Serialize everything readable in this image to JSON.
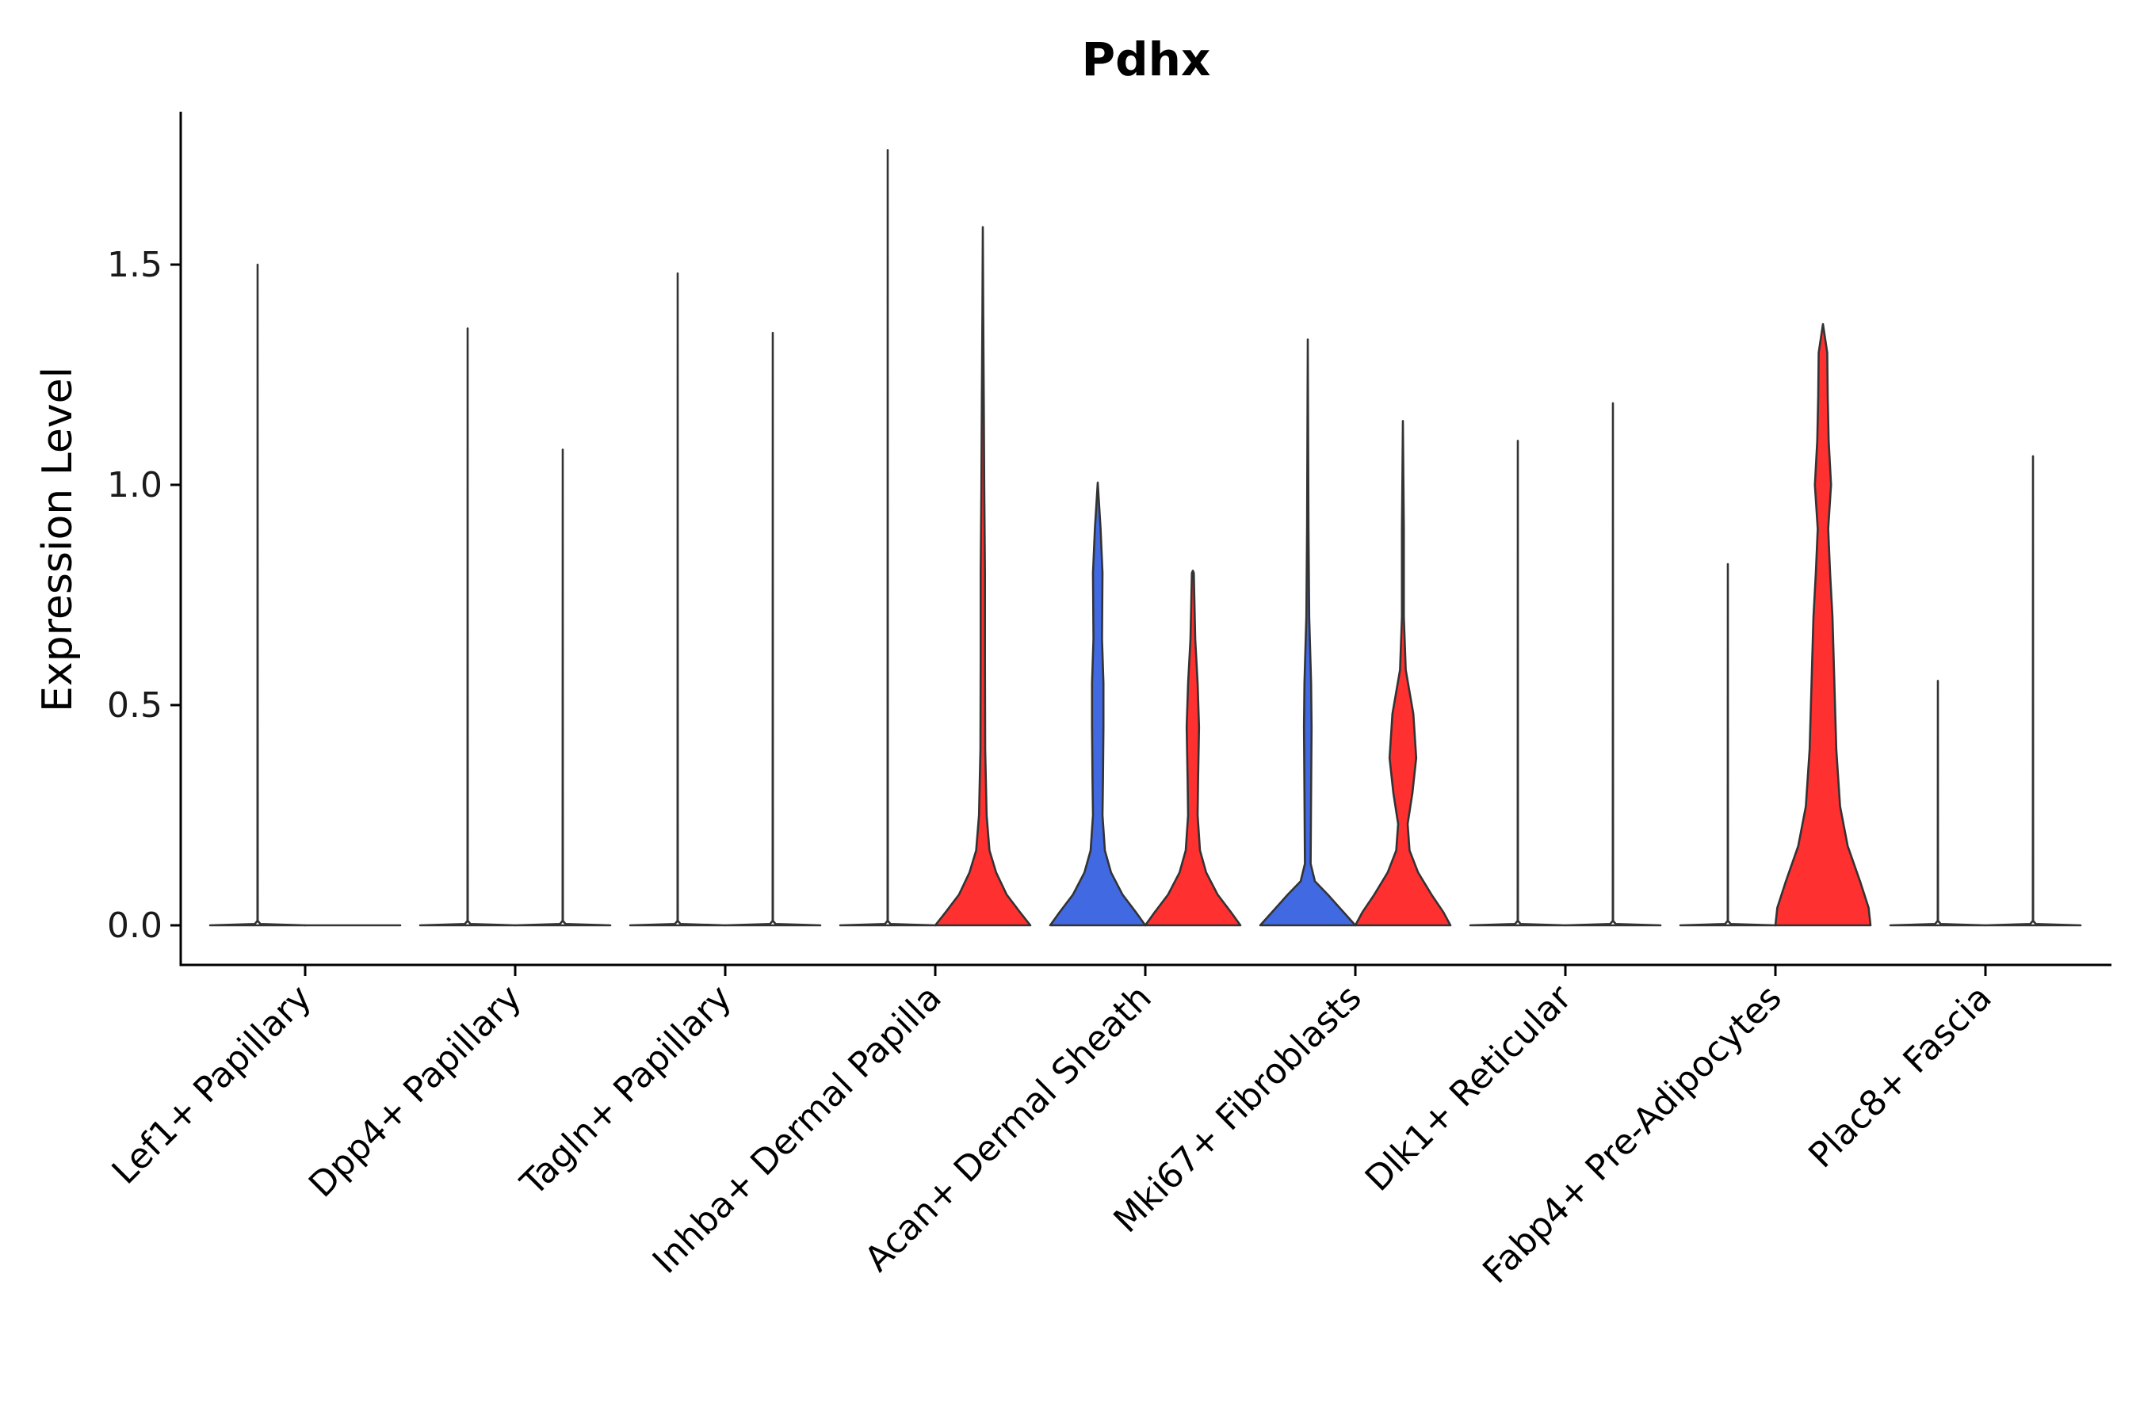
{
  "chart_data": {
    "type": "violin",
    "title": "Pdhx",
    "xlabel": "",
    "ylabel": "Expression Level",
    "ylim": [
      -0.09,
      1.85
    ],
    "yticks": [
      0.0,
      0.5,
      1.0,
      1.5
    ],
    "ytick_labels": [
      "0.0",
      "0.5",
      "1.0",
      "1.5"
    ],
    "categories": [
      "Lef1+ Papillary",
      "Dpp4+ Papillary",
      "Tagln+ Papillary",
      "Inhba+ Dermal Papilla",
      "Acan+ Dermal Sheath",
      "Mki67+ Fibroblasts",
      "Dlk1+ Reticular",
      "Fabp4+ Pre-Adipocytes",
      "Plac8+ Fascia"
    ],
    "colors": {
      "low": "#ffffff",
      "blue": "#4169e1",
      "red": "#ff3030",
      "outline": "#333333"
    },
    "violins": [
      {
        "category_index": 0,
        "side": "left",
        "max": 1.5,
        "fill": "#ffffff",
        "profile": [
          [
            0,
            1
          ],
          [
            0.003,
            0.06
          ],
          [
            0.01,
            0.004
          ],
          [
            1.5,
            0.0
          ]
        ]
      },
      {
        "category_index": 0,
        "side": "right",
        "max": 0.0,
        "fill": "#ffffff",
        "profile": [
          [
            0,
            1
          ],
          [
            0.0,
            0.0
          ]
        ]
      },
      {
        "category_index": 1,
        "side": "left",
        "max": 1.355,
        "fill": "#ffffff",
        "profile": [
          [
            0,
            1
          ],
          [
            0.003,
            0.06
          ],
          [
            0.01,
            0.004
          ],
          [
            1.355,
            0.0
          ]
        ]
      },
      {
        "category_index": 1,
        "side": "right",
        "max": 1.08,
        "fill": "#ffffff",
        "profile": [
          [
            0,
            1
          ],
          [
            0.003,
            0.06
          ],
          [
            0.01,
            0.004
          ],
          [
            1.08,
            0.0
          ]
        ]
      },
      {
        "category_index": 2,
        "side": "left",
        "max": 1.48,
        "fill": "#ffffff",
        "profile": [
          [
            0,
            1
          ],
          [
            0.003,
            0.06
          ],
          [
            0.01,
            0.004
          ],
          [
            1.48,
            0.0
          ]
        ]
      },
      {
        "category_index": 2,
        "side": "right",
        "max": 1.345,
        "fill": "#ffffff",
        "profile": [
          [
            0,
            1
          ],
          [
            0.003,
            0.06
          ],
          [
            0.01,
            0.004
          ],
          [
            1.345,
            0.0
          ]
        ]
      },
      {
        "category_index": 3,
        "side": "left",
        "max": 1.76,
        "fill": "#ffffff",
        "profile": [
          [
            0,
            1
          ],
          [
            0.003,
            0.06
          ],
          [
            0.01,
            0.004
          ],
          [
            1.76,
            0.0
          ]
        ]
      },
      {
        "category_index": 3,
        "side": "right",
        "max": 1.585,
        "fill": "#ff3030",
        "profile": [
          [
            0,
            1
          ],
          [
            0.03,
            0.78
          ],
          [
            0.07,
            0.5
          ],
          [
            0.12,
            0.28
          ],
          [
            0.17,
            0.14
          ],
          [
            0.25,
            0.08
          ],
          [
            0.4,
            0.05
          ],
          [
            0.6,
            0.045
          ],
          [
            0.8,
            0.045
          ],
          [
            1.0,
            0.03
          ],
          [
            1.2,
            0.02
          ],
          [
            1.4,
            0.008
          ],
          [
            1.585,
            0.0
          ]
        ]
      },
      {
        "category_index": 4,
        "side": "left",
        "max": 1.005,
        "fill": "#4169e1",
        "profile": [
          [
            0,
            1
          ],
          [
            0.03,
            0.8
          ],
          [
            0.07,
            0.52
          ],
          [
            0.12,
            0.28
          ],
          [
            0.17,
            0.15
          ],
          [
            0.25,
            0.1
          ],
          [
            0.33,
            0.11
          ],
          [
            0.45,
            0.12
          ],
          [
            0.55,
            0.12
          ],
          [
            0.65,
            0.09
          ],
          [
            0.8,
            0.1
          ],
          [
            0.9,
            0.06
          ],
          [
            1.005,
            0.0
          ]
        ]
      },
      {
        "category_index": 4,
        "side": "right",
        "max": 0.805,
        "fill": "#ff3030",
        "profile": [
          [
            0,
            1
          ],
          [
            0.03,
            0.8
          ],
          [
            0.07,
            0.52
          ],
          [
            0.12,
            0.28
          ],
          [
            0.17,
            0.15
          ],
          [
            0.25,
            0.1
          ],
          [
            0.33,
            0.11
          ],
          [
            0.45,
            0.13
          ],
          [
            0.55,
            0.1
          ],
          [
            0.65,
            0.05
          ],
          [
            0.8,
            0.02
          ],
          [
            0.805,
            0.0
          ]
        ]
      },
      {
        "category_index": 5,
        "side": "left",
        "max": 1.33,
        "fill": "#4169e1",
        "profile": [
          [
            0,
            1
          ],
          [
            0.03,
            0.75
          ],
          [
            0.07,
            0.42
          ],
          [
            0.1,
            0.15
          ],
          [
            0.14,
            0.06
          ],
          [
            0.3,
            0.07
          ],
          [
            0.45,
            0.08
          ],
          [
            0.55,
            0.07
          ],
          [
            0.7,
            0.03
          ],
          [
            0.9,
            0.015
          ],
          [
            1.33,
            0.0
          ]
        ]
      },
      {
        "category_index": 5,
        "side": "right",
        "max": 1.145,
        "fill": "#ff3030",
        "profile": [
          [
            0,
            1
          ],
          [
            0.03,
            0.85
          ],
          [
            0.07,
            0.6
          ],
          [
            0.12,
            0.32
          ],
          [
            0.17,
            0.14
          ],
          [
            0.23,
            0.1
          ],
          [
            0.3,
            0.2
          ],
          [
            0.38,
            0.28
          ],
          [
            0.48,
            0.22
          ],
          [
            0.58,
            0.06
          ],
          [
            0.7,
            0.02
          ],
          [
            0.9,
            0.02
          ],
          [
            1.145,
            0.0
          ]
        ]
      },
      {
        "category_index": 6,
        "side": "left",
        "max": 1.1,
        "fill": "#ffffff",
        "profile": [
          [
            0,
            1
          ],
          [
            0.003,
            0.06
          ],
          [
            0.01,
            0.004
          ],
          [
            1.1,
            0.0
          ]
        ]
      },
      {
        "category_index": 6,
        "side": "right",
        "max": 1.185,
        "fill": "#ffffff",
        "profile": [
          [
            0,
            1
          ],
          [
            0.003,
            0.06
          ],
          [
            0.01,
            0.004
          ],
          [
            1.185,
            0.0
          ]
        ]
      },
      {
        "category_index": 7,
        "side": "left",
        "max": 0.82,
        "fill": "#ffffff",
        "profile": [
          [
            0,
            1
          ],
          [
            0.003,
            0.06
          ],
          [
            0.01,
            0.004
          ],
          [
            0.82,
            0.0
          ]
        ]
      },
      {
        "category_index": 7,
        "side": "right",
        "max": 1.365,
        "fill": "#ff3030",
        "profile": [
          [
            0,
            1
          ],
          [
            0.04,
            0.96
          ],
          [
            0.1,
            0.78
          ],
          [
            0.18,
            0.52
          ],
          [
            0.27,
            0.36
          ],
          [
            0.4,
            0.28
          ],
          [
            0.55,
            0.24
          ],
          [
            0.7,
            0.2
          ],
          [
            0.8,
            0.15
          ],
          [
            0.9,
            0.11
          ],
          [
            1.0,
            0.17
          ],
          [
            1.1,
            0.12
          ],
          [
            1.2,
            0.1
          ],
          [
            1.3,
            0.09
          ],
          [
            1.365,
            0.0
          ]
        ]
      },
      {
        "category_index": 8,
        "side": "left",
        "max": 0.555,
        "fill": "#ffffff",
        "profile": [
          [
            0,
            1
          ],
          [
            0.003,
            0.06
          ],
          [
            0.01,
            0.004
          ],
          [
            0.555,
            0.0
          ]
        ]
      },
      {
        "category_index": 8,
        "side": "right",
        "max": 1.065,
        "fill": "#ffffff",
        "profile": [
          [
            0,
            1
          ],
          [
            0.003,
            0.06
          ],
          [
            0.01,
            0.004
          ],
          [
            1.065,
            0.0
          ]
        ]
      }
    ]
  }
}
